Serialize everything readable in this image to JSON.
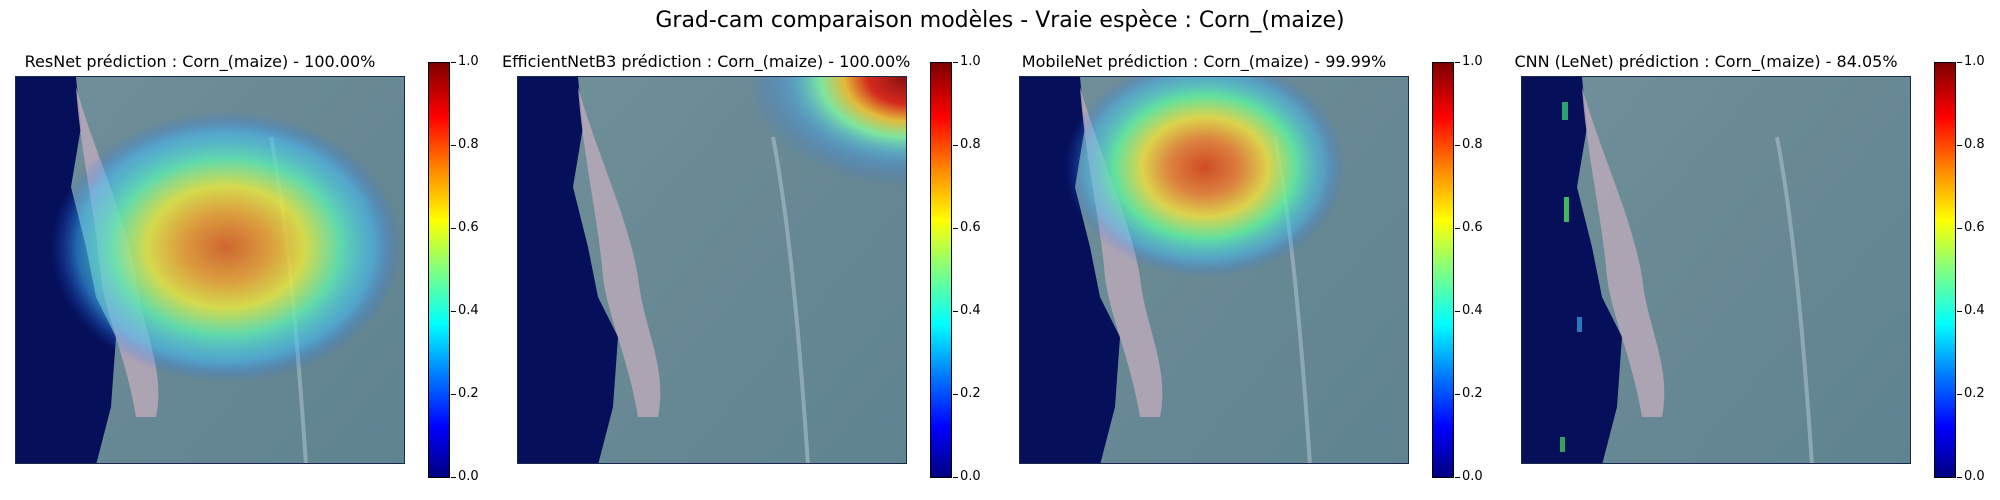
{
  "suptitle": "Grad-cam comparaison modèles - Vraie espèce : Corn_(maize)",
  "panels": [
    {
      "title": "ResNet prédiction : Corn_(maize) - 100.00%",
      "heat": "center"
    },
    {
      "title": "EfficientNetB3 prédiction : Corn_(maize) - 100.00%",
      "heat": "top-right"
    },
    {
      "title": "MobileNet prédiction : Corn_(maize) - 99.99%",
      "heat": "upper-center"
    },
    {
      "title": "CNN (LeNet) prédiction : Corn_(maize) - 84.05%",
      "heat": "none"
    }
  ],
  "colorbar": {
    "colormap": "jet",
    "range": [
      0.0,
      1.0
    ],
    "ticks": [
      "1.0",
      "0.8",
      "0.6",
      "0.4",
      "0.2",
      "0.0"
    ]
  }
}
